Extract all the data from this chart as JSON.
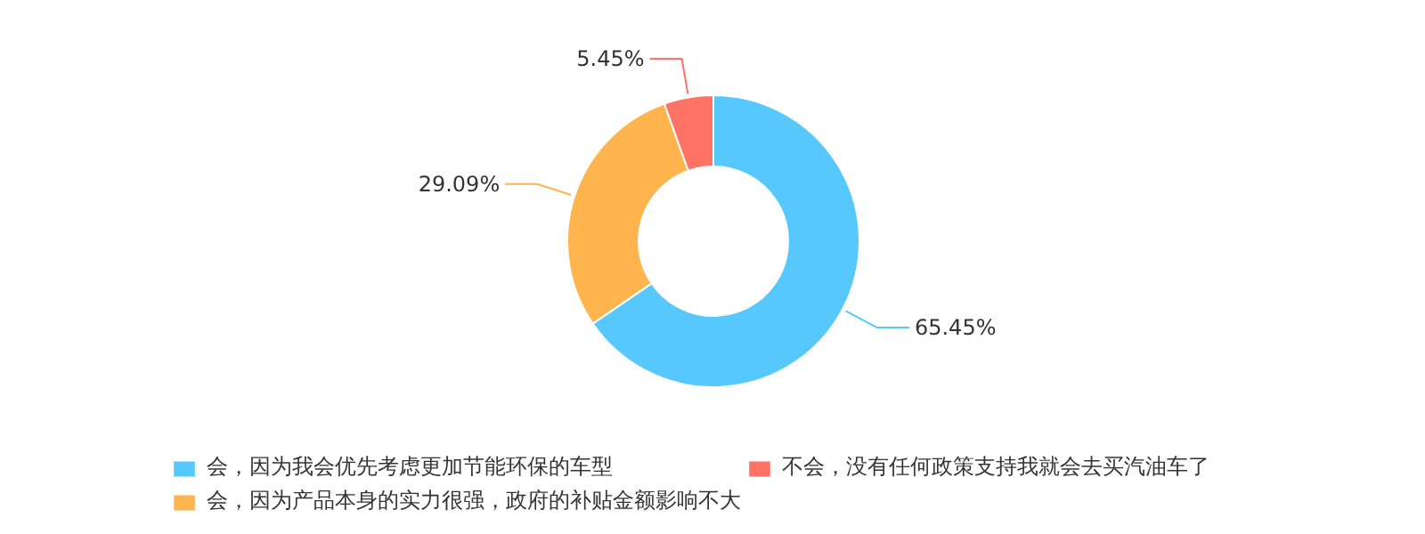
{
  "chart_data": {
    "type": "donut",
    "categories": [
      "会，因为我会优先考虑更加节能环保的车型",
      "会，因为产品本身的实力很强，政府的补贴金额影响不大",
      "不会，没有任何政策支持我就会去买汽油车了"
    ],
    "values": [
      65.45,
      29.09,
      5.45
    ],
    "colors": [
      "#56c8fc",
      "#ffb44e",
      "#ff7366"
    ],
    "value_labels": [
      "65.45%",
      "29.09%",
      "5.45%"
    ],
    "legend": "bottom"
  }
}
